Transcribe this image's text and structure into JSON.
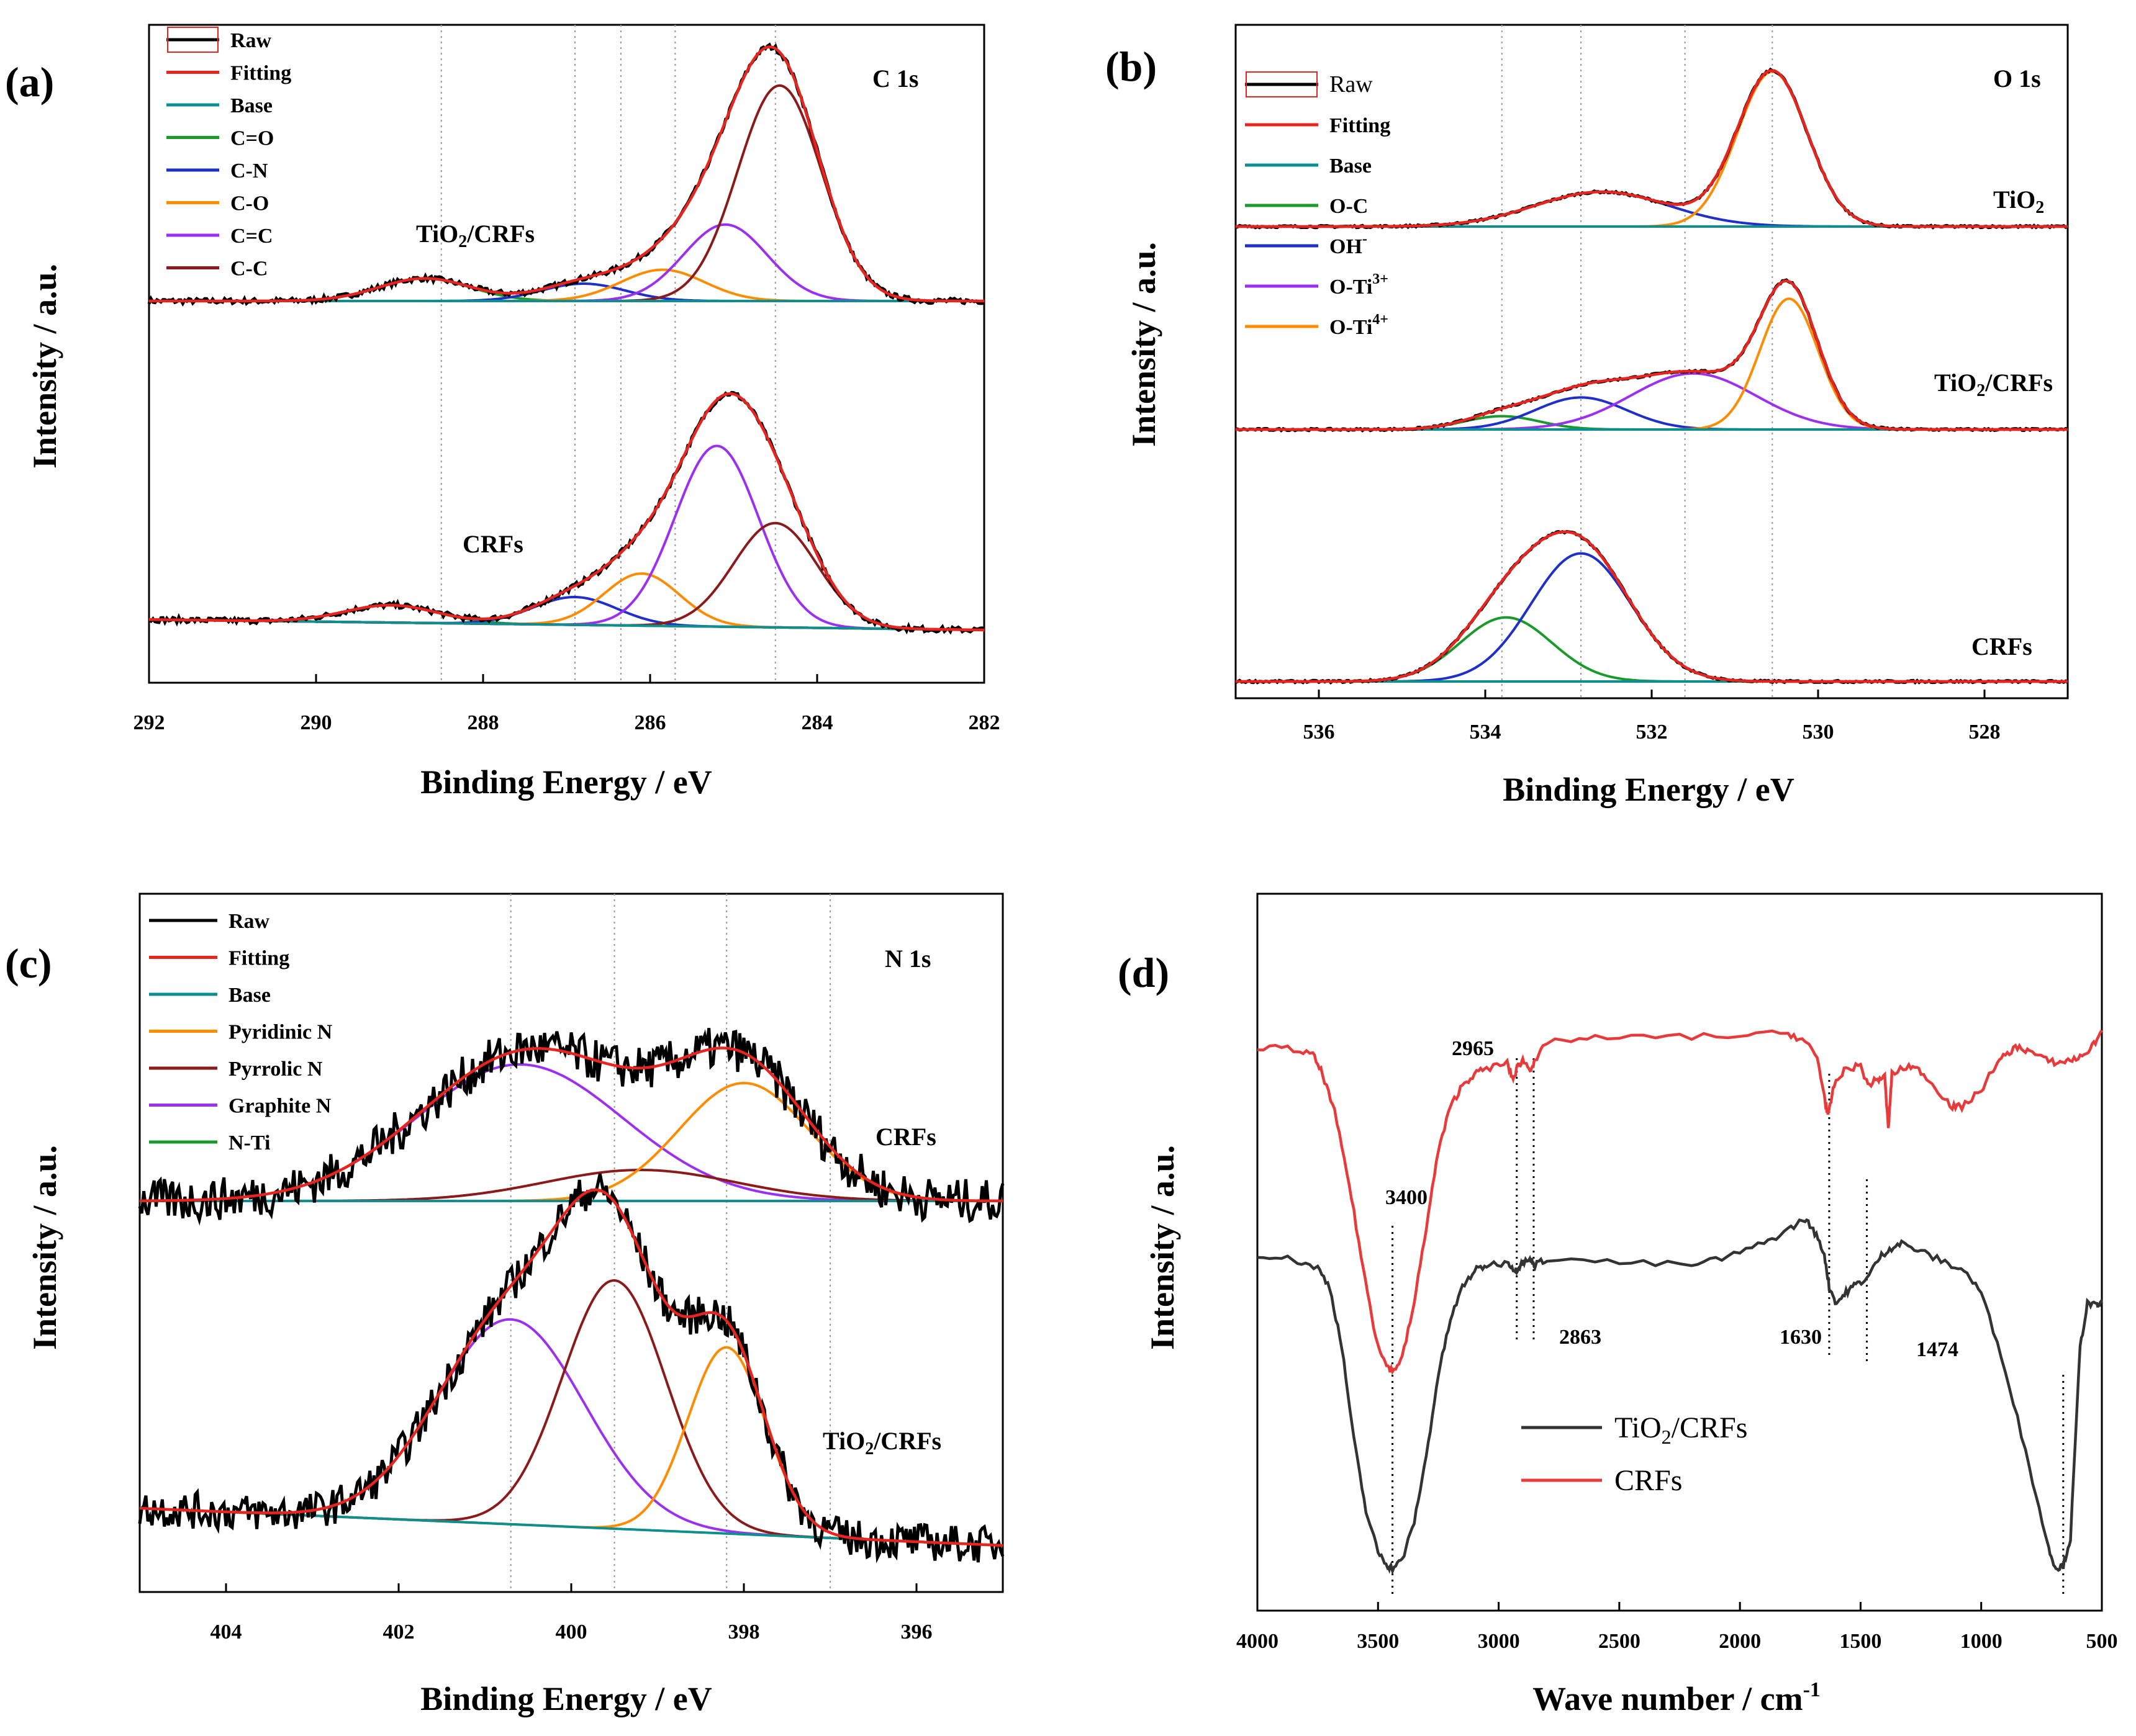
{
  "chart_data": [
    {
      "id": "a",
      "type": "line",
      "panel_label": "(a)",
      "corner_label": "C 1s",
      "xlabel": "Binding Energy /  eV",
      "ylabel": "Intensity / a.u.",
      "xlim": [
        292,
        282
      ],
      "xticks": [
        "292",
        "290",
        "288",
        "286",
        "284",
        "282"
      ],
      "guides": [
        288.5,
        286.9,
        286.35,
        285.7,
        284.5
      ],
      "legend": [
        {
          "label": "Raw",
          "color": "#000000"
        },
        {
          "label": "Fitting",
          "color": "#e8241f"
        },
        {
          "label": "Base",
          "color": "#0d8f8f"
        },
        {
          "label": "C=O",
          "color": "#1a9a2a"
        },
        {
          "label": "C-N",
          "color": "#1f2fc9"
        },
        {
          "label": "C-O",
          "color": "#ff8c00"
        },
        {
          "label": "C=C",
          "color": "#9b30f0"
        },
        {
          "label": "C-C",
          "color": "#8b1a1a"
        }
      ],
      "samples": [
        {
          "name": "TiO2/CRFs",
          "text_main": "TiO",
          "text_sub": "2",
          "text_rest": "/CRFs",
          "baseline": 0.12,
          "noise": 0.008,
          "base_slope": 0.0,
          "components": [
            {
              "label": "C=O",
              "center": 288.7,
              "height": 0.065,
              "width": 0.55
            },
            {
              "label": "C-N",
              "center": 286.8,
              "height": 0.05,
              "width": 0.5
            },
            {
              "label": "C-O",
              "center": 285.85,
              "height": 0.09,
              "width": 0.5
            },
            {
              "label": "C=C",
              "center": 285.1,
              "height": 0.22,
              "width": 0.5
            },
            {
              "label": "C-C",
              "center": 284.45,
              "height": 0.62,
              "width": 0.5
            }
          ]
        },
        {
          "name": "CRFs",
          "text_main": "CRFs",
          "text_sub": "",
          "text_rest": "",
          "baseline": -0.62,
          "noise": 0.008,
          "base_slope": 0.003,
          "components": [
            {
              "label": "C=O",
              "center": 289.1,
              "height": 0.05,
              "width": 0.55
            },
            {
              "label": "C-N",
              "center": 286.9,
              "height": 0.08,
              "width": 0.5
            },
            {
              "label": "C-O",
              "center": 286.1,
              "height": 0.15,
              "width": 0.45
            },
            {
              "label": "C=C",
              "center": 285.2,
              "height": 0.52,
              "width": 0.5
            },
            {
              "label": "C-C",
              "center": 284.5,
              "height": 0.3,
              "width": 0.5
            }
          ]
        }
      ]
    },
    {
      "id": "b",
      "type": "line",
      "panel_label": "(b)",
      "corner_label": "O 1s",
      "xlabel": "Binding Energy /  eV",
      "ylabel": "Intensity / a.u.",
      "xlim": [
        537,
        527
      ],
      "xticks": [
        "536",
        "534",
        "532",
        "530",
        "528"
      ],
      "guides": [
        533.8,
        532.85,
        531.6,
        530.55
      ],
      "legend": [
        {
          "label": "Raw",
          "color": "#000000"
        },
        {
          "label": "Fitting",
          "color": "#e8241f"
        },
        {
          "label": "Base",
          "color": "#0d8f8f"
        },
        {
          "label": "O-C",
          "color": "#1a9a2a"
        },
        {
          "label": "OH",
          "sup": "-",
          "color": "#1f2fc9"
        },
        {
          "label": "O-Ti",
          "sup": "3+",
          "color": "#9b30f0"
        },
        {
          "label": "O-Ti",
          "sup": "4+",
          "color": "#ff8c00"
        }
      ],
      "samples": [
        {
          "name": "TiO2",
          "text_main": "TiO",
          "text_sub": "2",
          "text_rest": "",
          "baseline": 0.45,
          "noise": 0.004,
          "base_slope": 0.0,
          "components": [
            {
              "label": "OH-",
              "center": 532.6,
              "height": 0.13,
              "width": 0.8
            },
            {
              "label": "O-Ti4+",
              "center": 530.55,
              "height": 0.58,
              "width": 0.42
            }
          ]
        },
        {
          "name": "TiO2/CRFs",
          "text_main": "TiO",
          "text_sub": "2",
          "text_rest": "/CRFs",
          "baseline": -0.02,
          "noise": 0.004,
          "base_slope": 0.0,
          "components": [
            {
              "label": "O-C",
              "center": 533.8,
              "height": 0.05,
              "width": 0.45
            },
            {
              "label": "OH-",
              "center": 532.85,
              "height": 0.12,
              "width": 0.55
            },
            {
              "label": "O-Ti3+",
              "center": 531.5,
              "height": 0.21,
              "width": 0.75
            },
            {
              "label": "O-Ti4+",
              "center": 530.35,
              "height": 0.49,
              "width": 0.35
            }
          ]
        },
        {
          "name": "CRFs",
          "text_main": "CRFs",
          "text_sub": "",
          "text_rest": "",
          "baseline": -0.63,
          "noise": 0.004,
          "base_slope": 0.0,
          "components": [
            {
              "label": "O-C",
              "center": 533.75,
              "height": 0.24,
              "width": 0.55
            },
            {
              "label": "OH-",
              "center": 532.85,
              "height": 0.48,
              "width": 0.6
            }
          ]
        }
      ]
    },
    {
      "id": "c",
      "type": "line",
      "panel_label": "(c)",
      "corner_label": "N 1s",
      "xlabel": "Binding Energy /  eV",
      "ylabel": "Intensity / a.u.",
      "xlim": [
        405,
        395
      ],
      "xticks": [
        "404",
        "402",
        "400",
        "398",
        "396"
      ],
      "guides": [
        400.7,
        399.5,
        398.2,
        397.0
      ],
      "legend": [
        {
          "label": "Raw",
          "color": "#000000"
        },
        {
          "label": "Fitting",
          "color": "#e8241f"
        },
        {
          "label": "Base",
          "color": "#0d8f8f"
        },
        {
          "label": "Pyridinic N",
          "color": "#ff8c00"
        },
        {
          "label": "Pyrrolic N",
          "color": "#8b1a1a"
        },
        {
          "label": "Graphite N",
          "color": "#9b30f0"
        },
        {
          "label": "N-Ti",
          "color": "#1a9a2a"
        }
      ],
      "samples": [
        {
          "name": "CRFs",
          "text_main": "CRFs",
          "text_sub": "",
          "text_rest": "",
          "baseline": 0.1,
          "noise": 0.035,
          "base_slope": 0.0,
          "components": [
            {
              "label": "Graphite N",
              "center": 400.6,
              "height": 0.22,
              "width": 1.2
            },
            {
              "label": "Pyrrolic N",
              "center": 399.2,
              "height": 0.05,
              "width": 1.1
            },
            {
              "label": "Pyridinic N",
              "center": 398.0,
              "height": 0.19,
              "width": 0.75
            }
          ]
        },
        {
          "name": "TiO2/CRFs",
          "text_main": "TiO",
          "text_sub": "2",
          "text_rest": "/CRFs",
          "baseline": -0.6,
          "noise": 0.03,
          "base_slope": 0.006,
          "components": [
            {
              "label": "Graphite N",
              "center": 400.7,
              "height": 0.33,
              "width": 0.85
            },
            {
              "label": "Pyrrolic N",
              "center": 399.5,
              "height": 0.4,
              "width": 0.6
            },
            {
              "label": "Pyridinic N",
              "center": 398.2,
              "height": 0.3,
              "width": 0.45
            }
          ]
        }
      ]
    },
    {
      "id": "d",
      "type": "line",
      "panel_label": "(d)",
      "xlabel": "Wave number /  cm",
      "xlabel_sup": "-1",
      "ylabel": "Intensity / a.u.",
      "xlim": [
        4000,
        500
      ],
      "xticks": [
        "4000",
        "3500",
        "3000",
        "2500",
        "2000",
        "1500",
        "1000",
        "500"
      ],
      "series": [
        {
          "name": "TiO2/CRFs",
          "text_main": "TiO",
          "text_sub": "2",
          "text_rest": "/CRFs",
          "color": "#333333",
          "points": [
            [
              4000,
              0.59
            ],
            [
              3850,
              0.58
            ],
            [
              3750,
              0.565
            ],
            [
              3700,
              0.53
            ],
            [
              3650,
              0.42
            ],
            [
              3600,
              0.25
            ],
            [
              3550,
              0.12
            ],
            [
              3500,
              0.045
            ],
            [
              3460,
              0.02
            ],
            [
              3440,
              0.015
            ],
            [
              3400,
              0.03
            ],
            [
              3350,
              0.1
            ],
            [
              3300,
              0.22
            ],
            [
              3250,
              0.37
            ],
            [
              3200,
              0.47
            ],
            [
              3150,
              0.53
            ],
            [
              3100,
              0.56
            ],
            [
              3050,
              0.57
            ],
            [
              2960,
              0.575
            ],
            [
              2930,
              0.56
            ],
            [
              2920,
              0.565
            ],
            [
              2900,
              0.575
            ],
            [
              2865,
              0.58
            ],
            [
              2850,
              0.57
            ],
            [
              2800,
              0.582
            ],
            [
              2500,
              0.575
            ],
            [
              2200,
              0.57
            ],
            [
              2050,
              0.585
            ],
            [
              1900,
              0.61
            ],
            [
              1800,
              0.635
            ],
            [
              1730,
              0.655
            ],
            [
              1690,
              0.63
            ],
            [
              1650,
              0.59
            ],
            [
              1630,
              0.53
            ],
            [
              1600,
              0.5
            ],
            [
              1560,
              0.52
            ],
            [
              1520,
              0.535
            ],
            [
              1474,
              0.545
            ],
            [
              1420,
              0.585
            ],
            [
              1380,
              0.6
            ],
            [
              1330,
              0.61
            ],
            [
              1250,
              0.595
            ],
            [
              1150,
              0.575
            ],
            [
              1070,
              0.56
            ],
            [
              1000,
              0.52
            ],
            [
              900,
              0.38
            ],
            [
              800,
              0.2
            ],
            [
              720,
              0.05
            ],
            [
              690,
              0.015
            ],
            [
              660,
              0.02
            ],
            [
              630,
              0.07
            ],
            [
              590,
              0.42
            ],
            [
              560,
              0.5
            ],
            [
              520,
              0.495
            ],
            [
              500,
              0.5
            ]
          ]
        },
        {
          "name": "CRFs",
          "text_main": "CRFs",
          "text_sub": "",
          "text_rest": "",
          "color": "#e83a3a",
          "points": [
            [
              4000,
              0.97
            ],
            [
              3850,
              0.965
            ],
            [
              3770,
              0.955
            ],
            [
              3730,
              0.92
            ],
            [
              3680,
              0.85
            ],
            [
              3620,
              0.72
            ],
            [
              3560,
              0.56
            ],
            [
              3510,
              0.44
            ],
            [
              3470,
              0.39
            ],
            [
              3440,
              0.375
            ],
            [
              3400,
              0.4
            ],
            [
              3350,
              0.5
            ],
            [
              3300,
              0.64
            ],
            [
              3250,
              0.78
            ],
            [
              3200,
              0.86
            ],
            [
              3150,
              0.9
            ],
            [
              3100,
              0.92
            ],
            [
              3050,
              0.93
            ],
            [
              2965,
              0.94
            ],
            [
              2940,
              0.91
            ],
            [
              2920,
              0.935
            ],
            [
              2900,
              0.945
            ],
            [
              2870,
              0.93
            ],
            [
              2850,
              0.94
            ],
            [
              2800,
              0.98
            ],
            [
              2600,
              0.985
            ],
            [
              2300,
              0.988
            ],
            [
              2000,
              0.99
            ],
            [
              1800,
              0.995
            ],
            [
              1730,
              0.98
            ],
            [
              1680,
              0.95
            ],
            [
              1650,
              0.88
            ],
            [
              1635,
              0.84
            ],
            [
              1610,
              0.9
            ],
            [
              1560,
              0.93
            ],
            [
              1500,
              0.935
            ],
            [
              1470,
              0.9
            ],
            [
              1430,
              0.91
            ],
            [
              1400,
              0.915
            ],
            [
              1385,
              0.82
            ],
            [
              1370,
              0.92
            ],
            [
              1300,
              0.935
            ],
            [
              1250,
              0.925
            ],
            [
              1180,
              0.89
            ],
            [
              1120,
              0.86
            ],
            [
              1080,
              0.86
            ],
            [
              1000,
              0.89
            ],
            [
              950,
              0.93
            ],
            [
              900,
              0.955
            ],
            [
              850,
              0.97
            ],
            [
              800,
              0.962
            ],
            [
              730,
              0.945
            ],
            [
              680,
              0.94
            ],
            [
              640,
              0.945
            ],
            [
              590,
              0.95
            ],
            [
              540,
              0.97
            ],
            [
              500,
              1.0
            ]
          ]
        }
      ],
      "annotations": [
        {
          "label": "2965",
          "x": 2965
        },
        {
          "label": "3400",
          "x": 3440
        },
        {
          "label": "2863",
          "x": 2863
        },
        {
          "label": "1630",
          "x": 1630
        },
        {
          "label": "1474",
          "x": 1474
        }
      ],
      "guides": [
        3440,
        2925,
        2855,
        1630,
        1474,
        660
      ]
    }
  ]
}
